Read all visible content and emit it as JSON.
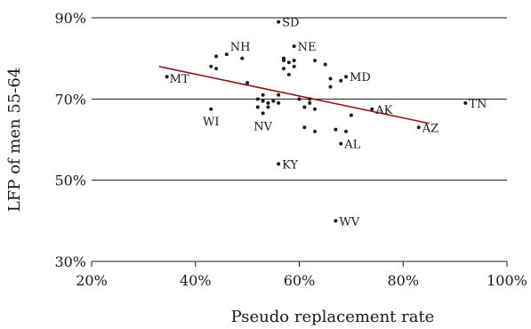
{
  "chart_data": {
    "type": "scatter",
    "title": "",
    "xlabel": "Pseudo replacement rate",
    "ylabel": "LFP of men 55-64",
    "xlim": [
      20,
      100
    ],
    "ylim": [
      30,
      90
    ],
    "x_ticks": [
      20,
      40,
      60,
      80,
      100
    ],
    "x_tick_labels": [
      "20%",
      "40%",
      "60%",
      "80%",
      "100%"
    ],
    "y_ticks": [
      30,
      50,
      70,
      90
    ],
    "y_tick_labels": [
      "30%",
      "50%",
      "70%",
      "90%"
    ],
    "grid": "horizontal",
    "point_color": "#1a1a1a",
    "trendline": {
      "color": "#8b1a1a",
      "x": [
        33,
        85
      ],
      "y": [
        78,
        64
      ]
    },
    "labeled_points": [
      {
        "label": "SD",
        "x": 56,
        "y": 89
      },
      {
        "label": "NH",
        "x": 46,
        "y": 81
      },
      {
        "label": "NE",
        "x": 59,
        "y": 83
      },
      {
        "label": "MT",
        "x": 34.5,
        "y": 75.5
      },
      {
        "label": "MD",
        "x": 69,
        "y": 75.5
      },
      {
        "label": "WI",
        "x": 43,
        "y": 67.5
      },
      {
        "label": "NV",
        "x": 53,
        "y": 66.5
      },
      {
        "label": "AK",
        "x": 74,
        "y": 67.5
      },
      {
        "label": "TN",
        "x": 92,
        "y": 69
      },
      {
        "label": "AZ",
        "x": 83,
        "y": 63
      },
      {
        "label": "AL",
        "x": 68,
        "y": 59
      },
      {
        "label": "KY",
        "x": 56,
        "y": 54
      },
      {
        "label": "WV",
        "x": 67,
        "y": 40
      }
    ],
    "unlabeled_points": [
      [
        43,
        78
      ],
      [
        44,
        77.5
      ],
      [
        44,
        80.5
      ],
      [
        49,
        80
      ],
      [
        50,
        74
      ],
      [
        52,
        70
      ],
      [
        53,
        71
      ],
      [
        53,
        69.5
      ],
      [
        54,
        69
      ],
      [
        54,
        68
      ],
      [
        52,
        68
      ],
      [
        55,
        69.5
      ],
      [
        56,
        69
      ],
      [
        56,
        71
      ],
      [
        57,
        80
      ],
      [
        57,
        79.5
      ],
      [
        57,
        77.5
      ],
      [
        58,
        76
      ],
      [
        58,
        79
      ],
      [
        59,
        78
      ],
      [
        59,
        79.5
      ],
      [
        60,
        70
      ],
      [
        61,
        68
      ],
      [
        61,
        63
      ],
      [
        62,
        69
      ],
      [
        62,
        70
      ],
      [
        63,
        67.5
      ],
      [
        63,
        62
      ],
      [
        63,
        79.5
      ],
      [
        65,
        78.5
      ],
      [
        66,
        75
      ],
      [
        66,
        73
      ],
      [
        67,
        62.5
      ],
      [
        68,
        74.5
      ],
      [
        69,
        62
      ],
      [
        70,
        66
      ]
    ]
  }
}
